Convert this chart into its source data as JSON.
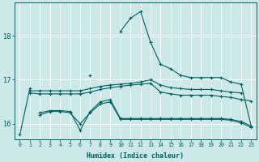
{
  "xlabel": "Humidex (Indice chaleur)",
  "background_color": "#cce8e8",
  "grid_color": "#b0d8d8",
  "line_color": "#006060",
  "x_range": [
    -0.5,
    23.5
  ],
  "y_range": [
    15.65,
    18.75
  ],
  "yticks": [
    16,
    17,
    18
  ],
  "xticks": [
    0,
    1,
    2,
    3,
    4,
    5,
    6,
    7,
    8,
    9,
    10,
    11,
    12,
    13,
    14,
    15,
    16,
    17,
    18,
    19,
    20,
    21,
    22,
    23
  ],
  "series": [
    {
      "x": [
        0,
        1,
        2,
        3,
        4,
        5,
        6,
        7,
        8,
        9,
        10,
        11,
        12,
        13,
        14,
        15,
        16,
        17,
        18,
        19,
        20,
        21,
        22,
        23
      ],
      "y": [
        15.75,
        16.8,
        null,
        null,
        null,
        null,
        null,
        17.1,
        null,
        null,
        18.1,
        18.4,
        18.55,
        17.85,
        17.35,
        17.25,
        17.1,
        17.05,
        17.05,
        17.05,
        17.05,
        16.95,
        16.9,
        15.95
      ]
    },
    {
      "x": [
        1,
        2,
        3,
        4,
        5,
        6,
        7,
        8,
        9,
        10,
        11,
        12,
        13,
        14,
        15,
        16,
        17,
        18,
        19,
        20,
        21,
        22
      ],
      "y": [
        16.75,
        16.75,
        16.75,
        16.75,
        16.75,
        16.75,
        16.8,
        16.85,
        16.88,
        16.9,
        16.92,
        16.95,
        17.0,
        16.88,
        16.82,
        16.8,
        16.78,
        16.78,
        16.78,
        16.75,
        16.72,
        16.7
      ]
    },
    {
      "x": [
        1,
        2,
        3,
        4,
        5,
        6,
        7,
        8,
        9,
        10,
        11,
        12,
        13,
        14,
        15,
        16,
        17,
        18,
        19,
        20,
        21,
        22,
        23
      ],
      "y": [
        16.7,
        16.68,
        16.68,
        16.68,
        16.68,
        16.68,
        16.72,
        16.78,
        16.82,
        16.85,
        16.88,
        16.9,
        16.92,
        16.72,
        16.68,
        16.65,
        16.65,
        16.65,
        16.65,
        16.62,
        16.6,
        16.55,
        16.52
      ]
    },
    {
      "x": [
        2,
        3,
        4,
        5,
        6,
        7,
        8,
        9,
        10,
        11,
        12,
        13,
        14,
        15,
        16,
        17,
        18,
        19,
        20,
        21,
        22,
        23
      ],
      "y": [
        16.25,
        16.3,
        16.3,
        16.28,
        15.85,
        16.28,
        16.5,
        16.55,
        16.12,
        16.12,
        16.12,
        16.12,
        16.12,
        16.12,
        16.12,
        16.12,
        16.12,
        16.12,
        16.12,
        16.1,
        16.05,
        15.95
      ]
    },
    {
      "x": [
        2,
        3,
        4,
        5,
        6,
        7,
        8,
        9,
        10,
        11,
        12,
        13,
        14,
        15,
        16,
        17,
        18,
        19,
        20,
        21,
        22,
        23
      ],
      "y": [
        16.2,
        16.28,
        16.28,
        16.25,
        16.0,
        16.25,
        16.45,
        16.5,
        16.1,
        16.1,
        16.1,
        16.1,
        16.1,
        16.1,
        16.1,
        16.1,
        16.1,
        16.1,
        16.1,
        16.08,
        16.02,
        15.92
      ]
    }
  ]
}
